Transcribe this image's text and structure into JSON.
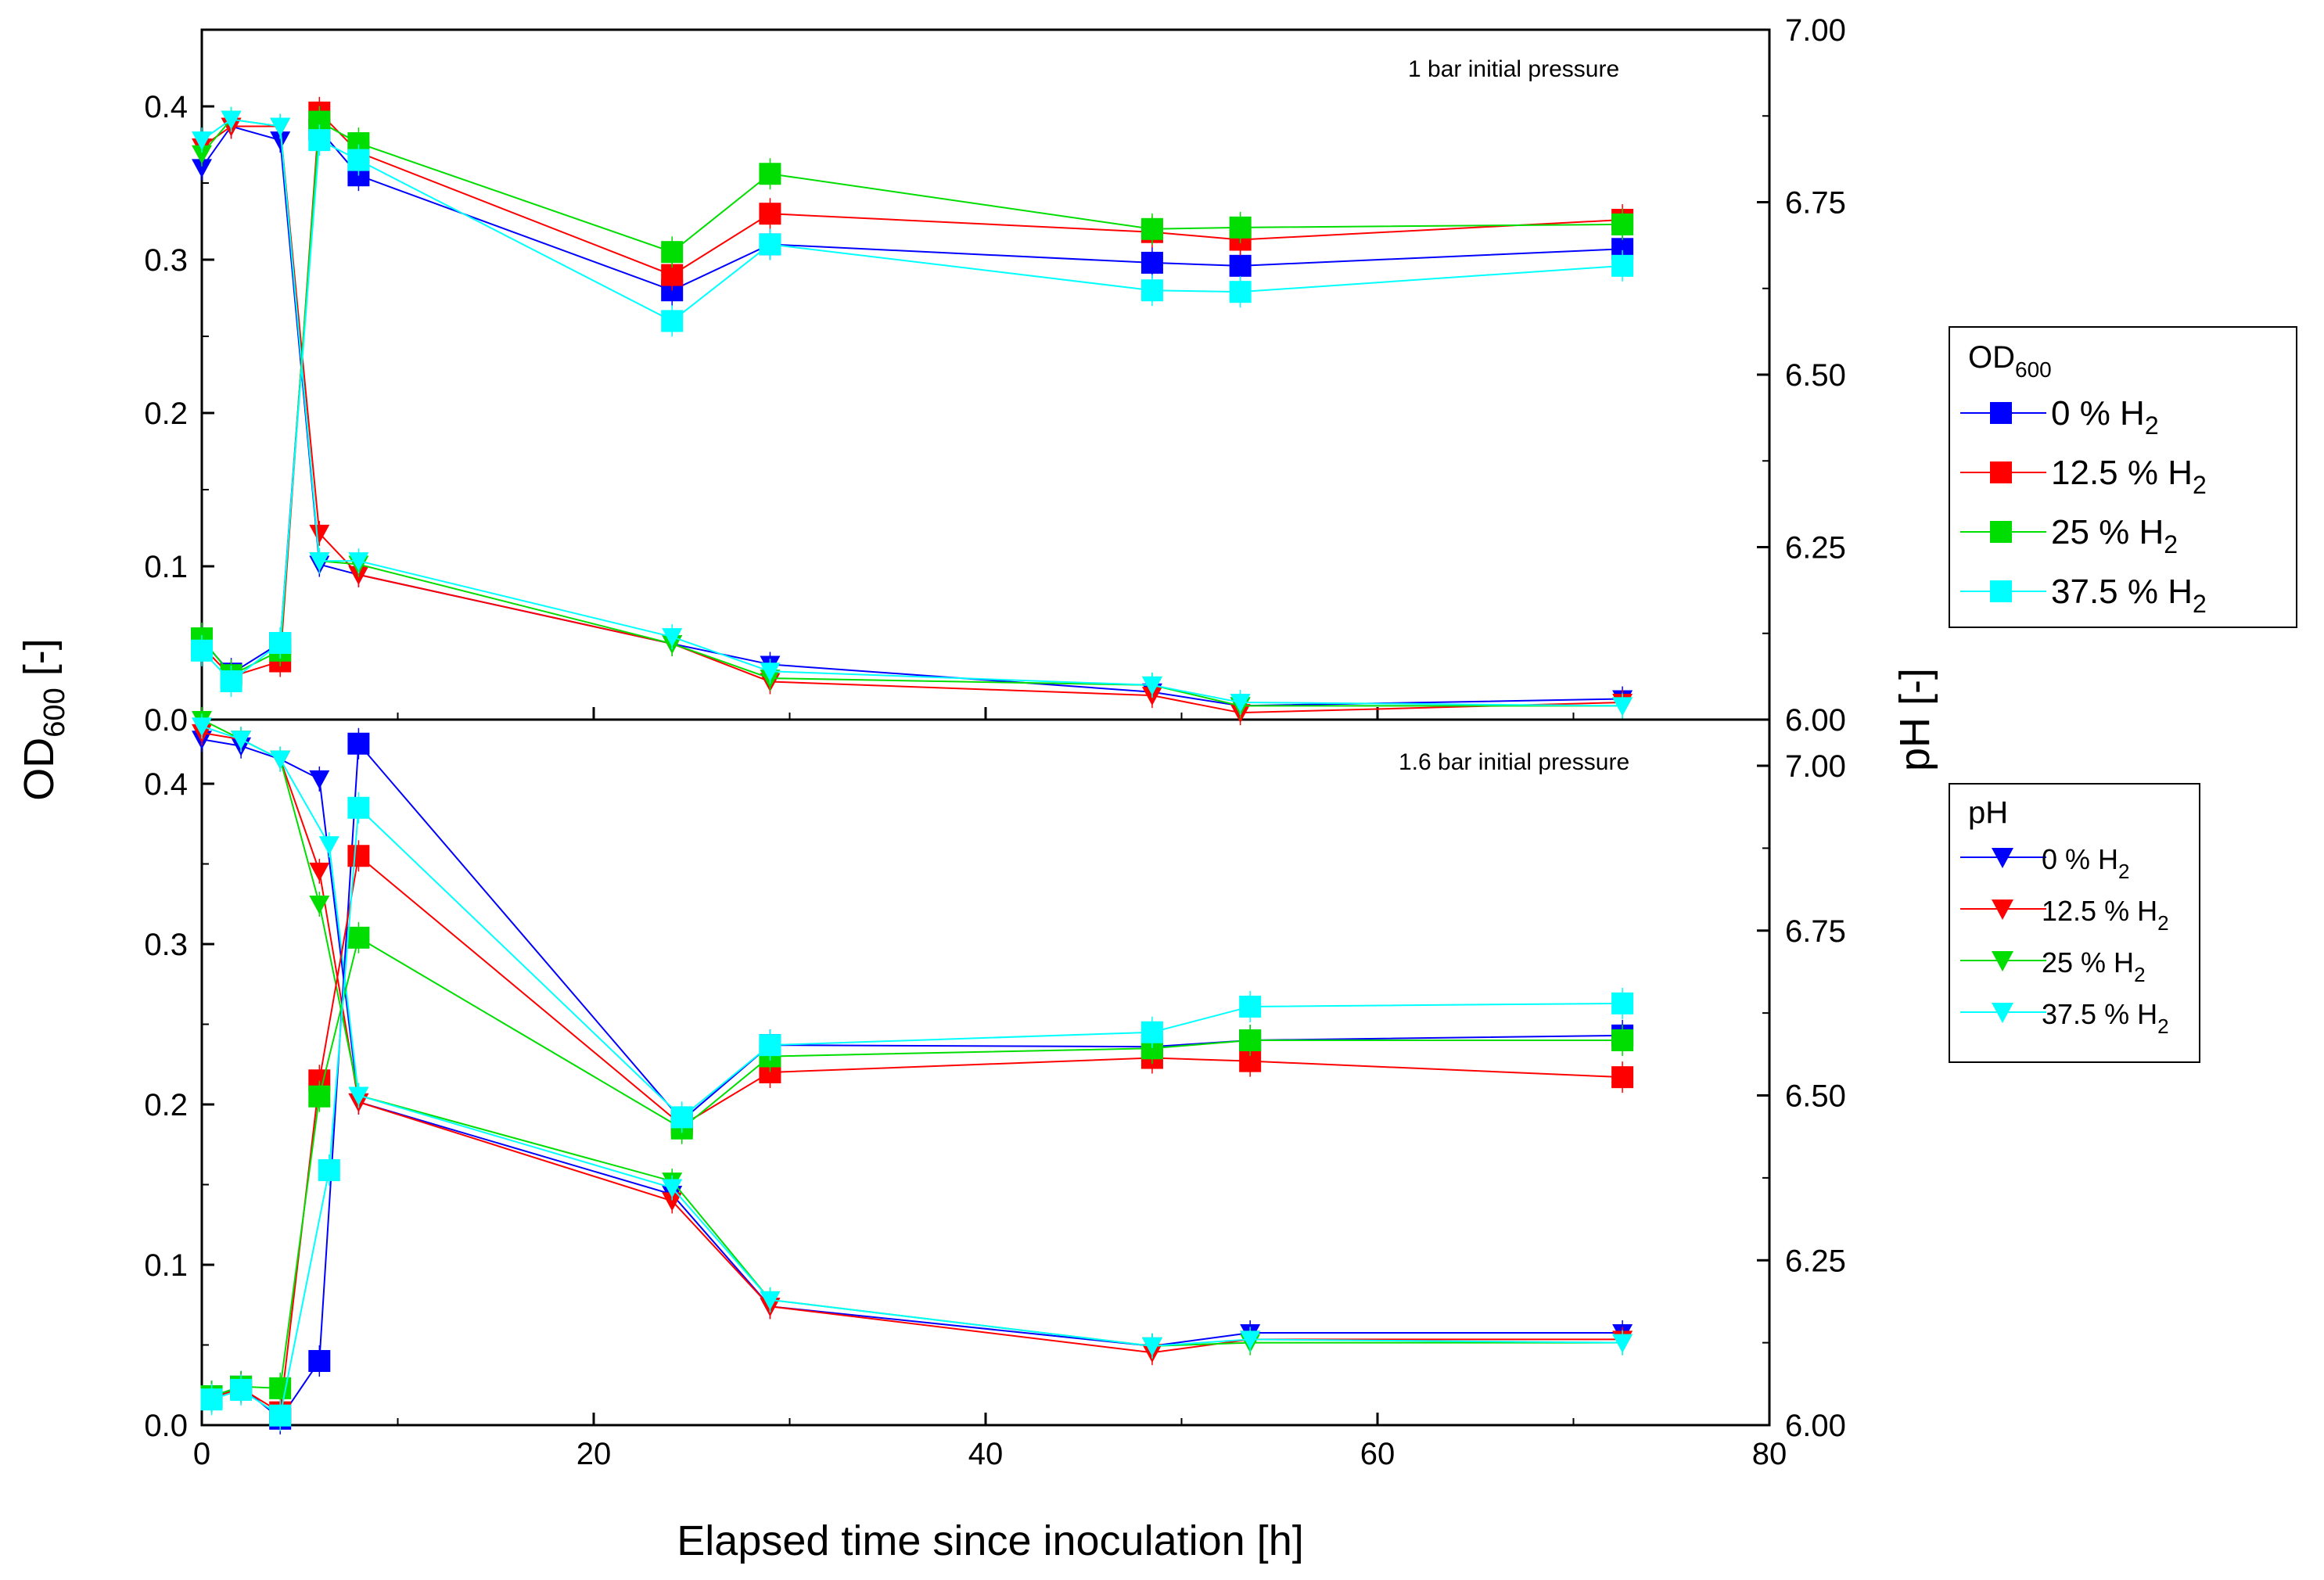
{
  "chart_data": [
    {
      "type": "line",
      "title": "1 bar initial pressure",
      "xlabel": "Elapsed time since inoculation [h]",
      "ylabel": "OD600 [-]",
      "y2label": "pH [-]",
      "xlim": [
        0,
        80
      ],
      "ylim": [
        0,
        0.45
      ],
      "y2lim": [
        6.0,
        7.0
      ],
      "xticks": [
        "0",
        "20",
        "40",
        "60",
        "80"
      ],
      "yticks": [
        "0.0",
        "0.1",
        "0.2",
        "0.3",
        "0.4"
      ],
      "y2ticks": [
        "6.00",
        "6.25",
        "6.50",
        "6.75",
        "7.00"
      ],
      "od_series": [
        {
          "name": "0 % H2",
          "color": "#0000ff",
          "x": [
            0,
            1.5,
            4,
            6,
            8,
            24,
            29,
            48.5,
            53,
            72.5
          ],
          "values": [
            0.052,
            0.03,
            0.05,
            0.385,
            0.355,
            0.28,
            0.31,
            0.298,
            0.296,
            0.307
          ]
        },
        {
          "name": "12.5 % H2",
          "color": "#ff0000",
          "x": [
            0,
            1.5,
            4,
            6,
            8,
            24,
            29,
            48.5,
            53,
            72.5
          ],
          "values": [
            0.048,
            0.028,
            0.038,
            0.396,
            0.37,
            0.29,
            0.33,
            0.318,
            0.313,
            0.326
          ]
        },
        {
          "name": "25 % H2",
          "color": "#00dd00",
          "x": [
            0,
            1.5,
            4,
            6,
            8,
            24,
            29,
            48.5,
            53,
            72.5
          ],
          "values": [
            0.053,
            0.029,
            0.045,
            0.39,
            0.376,
            0.305,
            0.356,
            0.32,
            0.321,
            0.323
          ]
        },
        {
          "name": "37.5 % H2",
          "color": "#00ffff",
          "x": [
            0,
            1.5,
            4,
            6,
            8,
            24,
            29,
            48.5,
            53,
            72.5
          ],
          "values": [
            0.045,
            0.025,
            0.05,
            0.378,
            0.365,
            0.26,
            0.31,
            0.28,
            0.279,
            0.296
          ]
        }
      ],
      "ph_series": [
        {
          "name": "0 % H2",
          "color": "#0000ff",
          "x": [
            0,
            1.5,
            4,
            6,
            8,
            24,
            29,
            48.5,
            53,
            72.5
          ],
          "values": [
            6.8,
            6.86,
            6.84,
            6.225,
            6.21,
            6.11,
            6.08,
            6.04,
            6.02,
            6.03
          ]
        },
        {
          "name": "12.5 % H2",
          "color": "#ff0000",
          "x": [
            0,
            1.5,
            4,
            6,
            8,
            24,
            29,
            48.5,
            53,
            72.5
          ],
          "values": [
            6.83,
            6.86,
            6.86,
            6.27,
            6.21,
            6.11,
            6.055,
            6.035,
            6.01,
            6.025
          ]
        },
        {
          "name": "25 % H2",
          "color": "#00dd00",
          "x": [
            0,
            1.5,
            4,
            6,
            8,
            24,
            29,
            48.5,
            53,
            72.5
          ],
          "values": [
            6.82,
            6.87,
            6.86,
            6.23,
            6.225,
            6.11,
            6.06,
            6.05,
            6.02,
            6.02
          ]
        },
        {
          "name": "37.5 % H2",
          "color": "#00ffff",
          "x": [
            0,
            1.5,
            4,
            6,
            8,
            24,
            29,
            48.5,
            53,
            72.5
          ],
          "values": [
            6.84,
            6.87,
            6.86,
            6.23,
            6.23,
            6.12,
            6.07,
            6.05,
            6.025,
            6.02
          ]
        }
      ]
    },
    {
      "type": "line",
      "title": "1.6 bar initial pressure",
      "xlabel": "Elapsed time since inoculation [h]",
      "ylabel": "OD600 [-]",
      "y2label": "pH [-]",
      "xlim": [
        0,
        80
      ],
      "ylim": [
        0,
        0.44
      ],
      "y2lim": [
        6.0,
        7.07
      ],
      "xticks": [
        "0",
        "20",
        "40",
        "60",
        "80"
      ],
      "yticks": [
        "0.0",
        "0.1",
        "0.2",
        "0.3",
        "0.4"
      ],
      "y2ticks": [
        "6.00",
        "6.25",
        "6.50",
        "6.75",
        "7.00"
      ],
      "od_series": [
        {
          "name": "0 % H2",
          "color": "#0000ff",
          "x": [
            0.5,
            2,
            4,
            6,
            8,
            24.5,
            29,
            48.5,
            53.5,
            72.5
          ],
          "values": [
            0.018,
            0.024,
            0.004,
            0.04,
            0.425,
            0.19,
            0.237,
            0.236,
            0.24,
            0.243
          ]
        },
        {
          "name": "12.5 % H2",
          "color": "#ff0000",
          "x": [
            0.5,
            2,
            4,
            6,
            8,
            24.5,
            29,
            48.5,
            53.5,
            72.5
          ],
          "values": [
            0.017,
            0.023,
            0.008,
            0.215,
            0.355,
            0.187,
            0.22,
            0.229,
            0.227,
            0.217
          ]
        },
        {
          "name": "25 % H2",
          "color": "#00dd00",
          "x": [
            0.5,
            2,
            4,
            6,
            8,
            24.5,
            29,
            48.5,
            53.5,
            72.5
          ],
          "values": [
            0.018,
            0.024,
            0.023,
            0.205,
            0.304,
            0.185,
            0.23,
            0.235,
            0.24,
            0.24
          ]
        },
        {
          "name": "37.5 % H2",
          "color": "#00ffff",
          "x": [
            0.5,
            2,
            4,
            6.5,
            8,
            24.5,
            29,
            48.5,
            53.5,
            72.5
          ],
          "values": [
            0.016,
            0.022,
            0.006,
            0.159,
            0.385,
            0.192,
            0.237,
            0.245,
            0.261,
            0.263
          ]
        }
      ],
      "ph_series": [
        {
          "name": "0 % H2",
          "color": "#0000ff",
          "x": [
            0,
            2,
            4,
            6,
            8,
            24,
            29,
            48.5,
            53.5,
            72.5
          ],
          "values": [
            7.04,
            7.03,
            7.01,
            6.98,
            6.49,
            6.35,
            6.18,
            6.12,
            6.14,
            6.14
          ]
        },
        {
          "name": "12.5 % H2",
          "color": "#ff0000",
          "x": [
            0,
            2,
            4,
            6,
            8,
            24,
            29,
            48.5,
            53.5,
            72.5
          ],
          "values": [
            7.05,
            7.04,
            7.01,
            6.84,
            6.49,
            6.34,
            6.18,
            6.11,
            6.13,
            6.13
          ]
        },
        {
          "name": "25 % H2",
          "color": "#00dd00",
          "x": [
            0,
            2,
            4,
            6,
            8,
            24,
            29,
            48.5,
            53.5,
            72.5
          ],
          "values": [
            7.07,
            7.04,
            7.01,
            6.79,
            6.5,
            6.37,
            6.19,
            6.12,
            6.125,
            6.125
          ]
        },
        {
          "name": "37.5 % H2",
          "color": "#00ffff",
          "x": [
            0,
            2,
            4,
            6.5,
            8,
            24,
            29,
            48.5,
            53.5,
            72.5
          ],
          "values": [
            7.06,
            7.04,
            7.01,
            6.88,
            6.5,
            6.36,
            6.19,
            6.12,
            6.13,
            6.125
          ]
        }
      ]
    }
  ],
  "legend": {
    "od_title_main": "OD",
    "od_title_sub": "600",
    "ph_title": "pH",
    "entries": [
      {
        "prefix": "0 % H",
        "sub": "2"
      },
      {
        "prefix": "12.5 % H",
        "sub": "2"
      },
      {
        "prefix": "25 % H",
        "sub": "2"
      },
      {
        "prefix": "37.5 % H",
        "sub": "2"
      }
    ]
  },
  "axis_titles": {
    "x": "Elapsed time since inoculation [h]",
    "y_main": "OD",
    "y_sub": "600",
    "y_suffix": " [-]",
    "y2": "pH [-]"
  }
}
